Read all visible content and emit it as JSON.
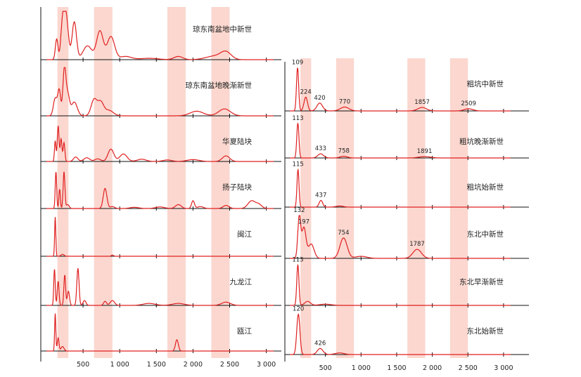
{
  "chart_data": {
    "type": "line",
    "colors": {
      "curve": "#e02020",
      "band": "#f9c9bf",
      "axis": "#111111",
      "text": "#222222"
    },
    "bands": [
      [
        150,
        300
      ],
      [
        650,
        900
      ],
      [
        1650,
        1900
      ],
      [
        2250,
        2500
      ]
    ],
    "left_column": {
      "x_ticks": [
        500,
        1000,
        1500,
        2000,
        2500,
        3000
      ],
      "x_tick_labels": [
        "500",
        "1 000",
        "1 500",
        "2 000",
        "2 500",
        "3 000"
      ],
      "panels": [
        {
          "label": "琼东南盆地中新世",
          "peaks": [
            [
              140,
              0.45,
              18
            ],
            [
              210,
              0.45,
              20
            ],
            [
              245,
              0.95,
              25
            ],
            [
              285,
              0.55,
              25
            ],
            [
              380,
              0.82,
              30
            ],
            [
              560,
              0.3,
              60
            ],
            [
              730,
              0.62,
              45
            ],
            [
              880,
              0.5,
              50
            ],
            [
              1080,
              0.07,
              80
            ],
            [
              1400,
              0.03,
              120
            ],
            [
              1800,
              0.07,
              60
            ],
            [
              2300,
              0.08,
              120
            ],
            [
              2450,
              0.15,
              70
            ]
          ]
        },
        {
          "label": "琼东南盆地晚渐新世",
          "peaks": [
            [
              120,
              0.38,
              25
            ],
            [
              175,
              0.55,
              20
            ],
            [
              245,
              1.0,
              20
            ],
            [
              290,
              0.45,
              25
            ],
            [
              380,
              0.3,
              40
            ],
            [
              650,
              0.35,
              40
            ],
            [
              740,
              0.28,
              40
            ],
            [
              850,
              0.12,
              60
            ],
            [
              2050,
              0.1,
              90
            ],
            [
              2430,
              0.15,
              80
            ]
          ]
        },
        {
          "label": "华夏陆块",
          "peaks": [
            [
              120,
              0.55,
              10
            ],
            [
              160,
              0.95,
              12
            ],
            [
              200,
              0.6,
              12
            ],
            [
              240,
              0.5,
              12
            ],
            [
              400,
              0.12,
              30
            ],
            [
              550,
              0.1,
              40
            ],
            [
              700,
              0.07,
              40
            ],
            [
              880,
              0.33,
              40
            ],
            [
              1050,
              0.2,
              50
            ],
            [
              1300,
              0.06,
              60
            ],
            [
              1650,
              0.04,
              60
            ],
            [
              2000,
              0.05,
              80
            ],
            [
              2450,
              0.15,
              50
            ]
          ]
        },
        {
          "label": "扬子陆块",
          "peaks": [
            [
              130,
              0.95,
              10
            ],
            [
              180,
              0.5,
              10
            ],
            [
              240,
              0.95,
              12
            ],
            [
              290,
              0.1,
              20
            ],
            [
              800,
              0.52,
              25
            ],
            [
              900,
              0.05,
              30
            ],
            [
              1200,
              0.03,
              60
            ],
            [
              1550,
              0.04,
              60
            ],
            [
              1800,
              0.1,
              40
            ],
            [
              2000,
              0.2,
              20
            ],
            [
              2100,
              0.05,
              40
            ],
            [
              2450,
              0.08,
              40
            ],
            [
              2800,
              0.2,
              50
            ],
            [
              2900,
              0.1,
              40
            ]
          ]
        },
        {
          "label": "闽江",
          "peaks": [
            [
              120,
              1.0,
              8
            ],
            [
              220,
              0.05,
              20
            ],
            [
              900,
              0.03,
              15
            ]
          ]
        },
        {
          "label": "九龙江",
          "peaks": [
            [
              110,
              0.9,
              10
            ],
            [
              160,
              0.6,
              12
            ],
            [
              250,
              0.75,
              12
            ],
            [
              300,
              0.35,
              15
            ],
            [
              430,
              0.92,
              15
            ],
            [
              520,
              0.12,
              20
            ],
            [
              800,
              0.1,
              20
            ],
            [
              900,
              0.12,
              30
            ],
            [
              1400,
              0.05,
              80
            ],
            [
              1800,
              0.05,
              80
            ],
            [
              2450,
              0.08,
              60
            ]
          ]
        },
        {
          "label": "瓯江",
          "peaks": [
            [
              120,
              1.0,
              8
            ],
            [
              160,
              0.35,
              12
            ],
            [
              220,
              0.12,
              20
            ],
            [
              1780,
              0.3,
              20
            ]
          ]
        }
      ]
    },
    "right_column": {
      "x_ticks": [
        500,
        1000,
        1500,
        2000,
        2500,
        3000
      ],
      "x_tick_labels": [
        "500",
        "1 000",
        "1 500",
        "2 000",
        "2 500",
        "3 000"
      ],
      "panels": [
        {
          "label": "粗坑中新世",
          "peaks": [
            [
              109,
              1.0,
              15
            ],
            [
              224,
              0.32,
              25
            ],
            [
              420,
              0.18,
              40
            ],
            [
              770,
              0.09,
              60
            ],
            [
              1857,
              0.08,
              60
            ],
            [
              2509,
              0.05,
              60
            ]
          ],
          "annotations": [
            {
              "x": 109,
              "text": "109"
            },
            {
              "x": 224,
              "text": "224"
            },
            {
              "x": 420,
              "text": "420"
            },
            {
              "x": 770,
              "text": "770"
            },
            {
              "x": 1857,
              "text": "1857"
            },
            {
              "x": 2509,
              "text": "2509"
            }
          ]
        },
        {
          "label": "粗坑晚渐新世",
          "peaks": [
            [
              113,
              1.0,
              15
            ],
            [
              433,
              0.12,
              40
            ],
            [
              758,
              0.05,
              50
            ],
            [
              1891,
              0.04,
              80
            ]
          ],
          "annotations": [
            {
              "x": 113,
              "text": "113"
            },
            {
              "x": 433,
              "text": "433"
            },
            {
              "x": 758,
              "text": "758"
            },
            {
              "x": 1891,
              "text": "1891"
            }
          ]
        },
        {
          "label": "粗坑始新世",
          "peaks": [
            [
              115,
              1.0,
              14
            ],
            [
              437,
              0.18,
              25
            ],
            [
              700,
              0.03,
              50
            ]
          ],
          "annotations": [
            {
              "x": 115,
              "text": "115"
            },
            {
              "x": 437,
              "text": "437"
            }
          ]
        },
        {
          "label": "东北中新世",
          "peaks": [
            [
              132,
              1.0,
              20
            ],
            [
              197,
              0.75,
              30
            ],
            [
              300,
              0.35,
              40
            ],
            [
              754,
              0.5,
              50
            ],
            [
              1000,
              0.05,
              80
            ],
            [
              1787,
              0.22,
              60
            ]
          ],
          "annotations": [
            {
              "x": 132,
              "text": "132"
            },
            {
              "x": 197,
              "text": "197"
            },
            {
              "x": 754,
              "text": "754"
            },
            {
              "x": 1787,
              "text": "1787"
            }
          ]
        },
        {
          "label": "东北早渐新世",
          "peaks": [
            [
              113,
              1.0,
              15
            ],
            [
              250,
              0.1,
              40
            ],
            [
              500,
              0.03,
              80
            ]
          ],
          "annotations": [
            {
              "x": 113,
              "text": "113"
            }
          ]
        },
        {
          "label": "东北始新世",
          "peaks": [
            [
              120,
              1.0,
              22
            ],
            [
              426,
              0.15,
              40
            ],
            [
              700,
              0.04,
              60
            ]
          ],
          "annotations": [
            {
              "x": 120,
              "text": "120"
            },
            {
              "x": 426,
              "text": "426"
            }
          ]
        }
      ]
    }
  }
}
